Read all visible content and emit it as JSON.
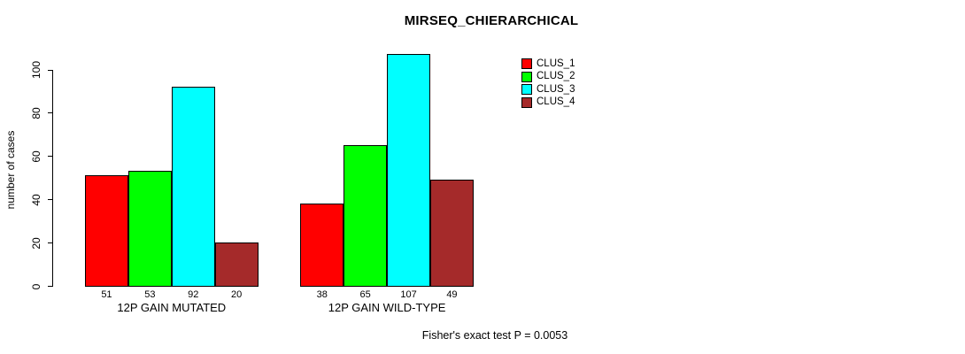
{
  "chart_data": {
    "type": "bar",
    "title": "MIRSEQ_CHIERARCHICAL",
    "ylabel": "number of cases",
    "xlabel": "",
    "ylim": [
      0,
      110
    ],
    "yticks": [
      0,
      20,
      40,
      60,
      80,
      100
    ],
    "grid": false,
    "legend_position": "top-right",
    "bar_value_labels": true,
    "categories": [
      "12P GAIN MUTATED",
      "12P GAIN WILD-TYPE"
    ],
    "series": [
      {
        "name": "CLUS_1",
        "color": "#FF0000",
        "values": [
          51,
          38
        ]
      },
      {
        "name": "CLUS_2",
        "color": "#00FF00",
        "values": [
          53,
          65
        ]
      },
      {
        "name": "CLUS_3",
        "color": "#00FFFF",
        "values": [
          92,
          107
        ]
      },
      {
        "name": "CLUS_4",
        "color": "#A52A2A",
        "values": [
          20,
          49
        ]
      }
    ],
    "annotation": "Fisher's exact test P = 0.0053"
  },
  "colors": {
    "axis": "#000000",
    "text": "#000000",
    "background": "#FFFFFF"
  }
}
